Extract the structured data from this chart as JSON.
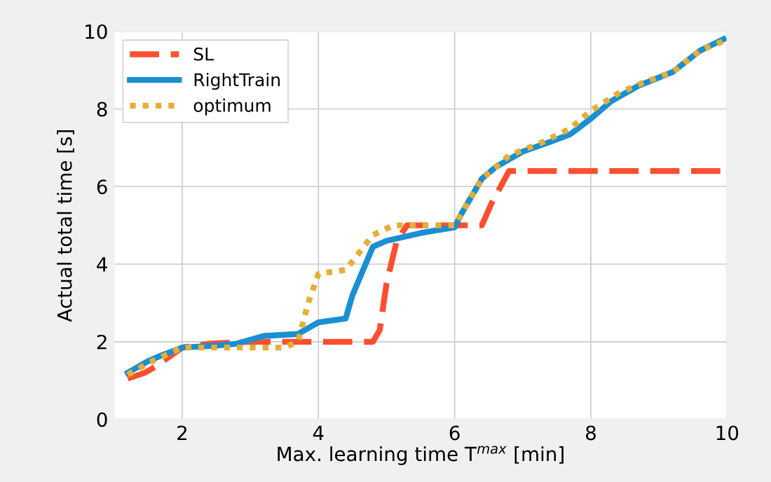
{
  "chart_data": {
    "type": "line",
    "xlabel": "Max. learning time T$^{max}$ [min]",
    "ylabel": "Actual total time [s]",
    "xlim": [
      1,
      10
    ],
    "ylim": [
      0,
      10
    ],
    "xticks": [
      2,
      4,
      6,
      8,
      10
    ],
    "yticks": [
      0,
      2,
      4,
      6,
      8,
      10
    ],
    "grid": true,
    "legend": "top left",
    "series": [
      {
        "name": "SL",
        "color": "#fc4f30",
        "line_style": "dashed",
        "x": [
          1.2,
          1.45,
          1.6,
          2.0,
          2.4,
          3.0,
          4.8,
          4.9,
          5.0,
          5.15,
          5.3,
          6.4,
          6.55,
          6.8,
          10.0
        ],
        "values": [
          1.05,
          1.2,
          1.35,
          1.85,
          1.95,
          2.0,
          2.0,
          2.3,
          3.5,
          4.6,
          5.0,
          5.0,
          5.6,
          6.4,
          6.4
        ]
      },
      {
        "name": "RightTrain",
        "color": "#1a8fd1",
        "line_style": "solid",
        "x": [
          1.2,
          1.5,
          1.7,
          2.0,
          2.5,
          2.8,
          3.2,
          3.7,
          3.85,
          4.0,
          4.4,
          4.5,
          4.8,
          5.0,
          5.5,
          6.0,
          6.1,
          6.4,
          6.6,
          7.0,
          7.4,
          7.7,
          8.0,
          8.3,
          8.7,
          9.2,
          9.6,
          9.95
        ],
        "values": [
          1.2,
          1.5,
          1.65,
          1.85,
          1.9,
          1.95,
          2.15,
          2.2,
          2.35,
          2.5,
          2.6,
          3.2,
          4.45,
          4.6,
          4.8,
          4.95,
          5.3,
          6.2,
          6.5,
          6.9,
          7.15,
          7.35,
          7.75,
          8.2,
          8.6,
          8.95,
          9.5,
          9.8
        ]
      },
      {
        "name": "optimum",
        "color": "#e5ae38",
        "line_style": "dotted",
        "x": [
          1.2,
          1.5,
          2.0,
          3.0,
          3.5,
          3.7,
          3.85,
          4.0,
          4.4,
          4.6,
          4.8,
          5.1,
          6.0,
          6.2,
          6.4,
          6.8,
          7.3,
          7.7,
          8.0,
          8.4,
          8.8,
          9.2,
          9.6,
          9.95
        ],
        "values": [
          1.15,
          1.45,
          1.85,
          1.85,
          1.85,
          2.0,
          3.0,
          3.75,
          3.85,
          4.3,
          4.75,
          5.0,
          5.0,
          5.6,
          6.2,
          6.8,
          7.15,
          7.5,
          7.95,
          8.4,
          8.7,
          8.95,
          9.5,
          9.75
        ]
      }
    ]
  }
}
